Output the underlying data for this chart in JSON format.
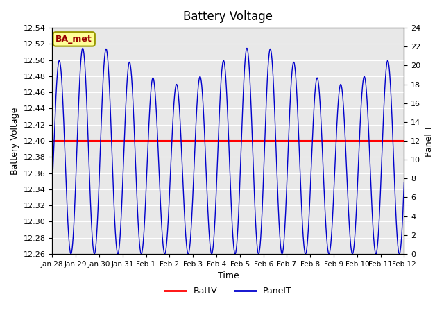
{
  "title": "Battery Voltage",
  "xlabel": "Time",
  "ylabel_left": "Battery Voltage",
  "ylabel_right": "Panel T",
  "xlim_start": 0,
  "xlim_end": 15,
  "ylim_left": [
    12.26,
    12.54
  ],
  "ylim_right": [
    0,
    24
  ],
  "batt_v": 12.4,
  "xtick_labels": [
    "Jan 28",
    "Jan 29",
    "Jan 30",
    "Jan 31",
    "Feb 1",
    "Feb 2",
    "Feb 3",
    "Feb 4",
    "Feb 5",
    "Feb 6",
    "Feb 7",
    "Feb 8",
    "Feb 9",
    "Feb 10",
    "Feb 11",
    "Feb 12"
  ],
  "xtick_positions": [
    0,
    1,
    2,
    3,
    4,
    5,
    6,
    7,
    8,
    9,
    10,
    11,
    12,
    13,
    14,
    15
  ],
  "yticks_left": [
    12.26,
    12.28,
    12.3,
    12.32,
    12.34,
    12.36,
    12.38,
    12.4,
    12.42,
    12.44,
    12.46,
    12.48,
    12.5,
    12.52,
    12.54
  ],
  "yticks_right": [
    0,
    2,
    4,
    6,
    8,
    10,
    12,
    14,
    16,
    18,
    20,
    22,
    24
  ],
  "bg_color": "#e8e8e8",
  "line_color_batt": "#ff0000",
  "line_color_panel": "#0000cc",
  "legend_label_batt": "BattV",
  "legend_label_panel": "PanelT",
  "watermark_text": "BA_met",
  "watermark_bg": "#ffff99",
  "watermark_border": "#999900"
}
